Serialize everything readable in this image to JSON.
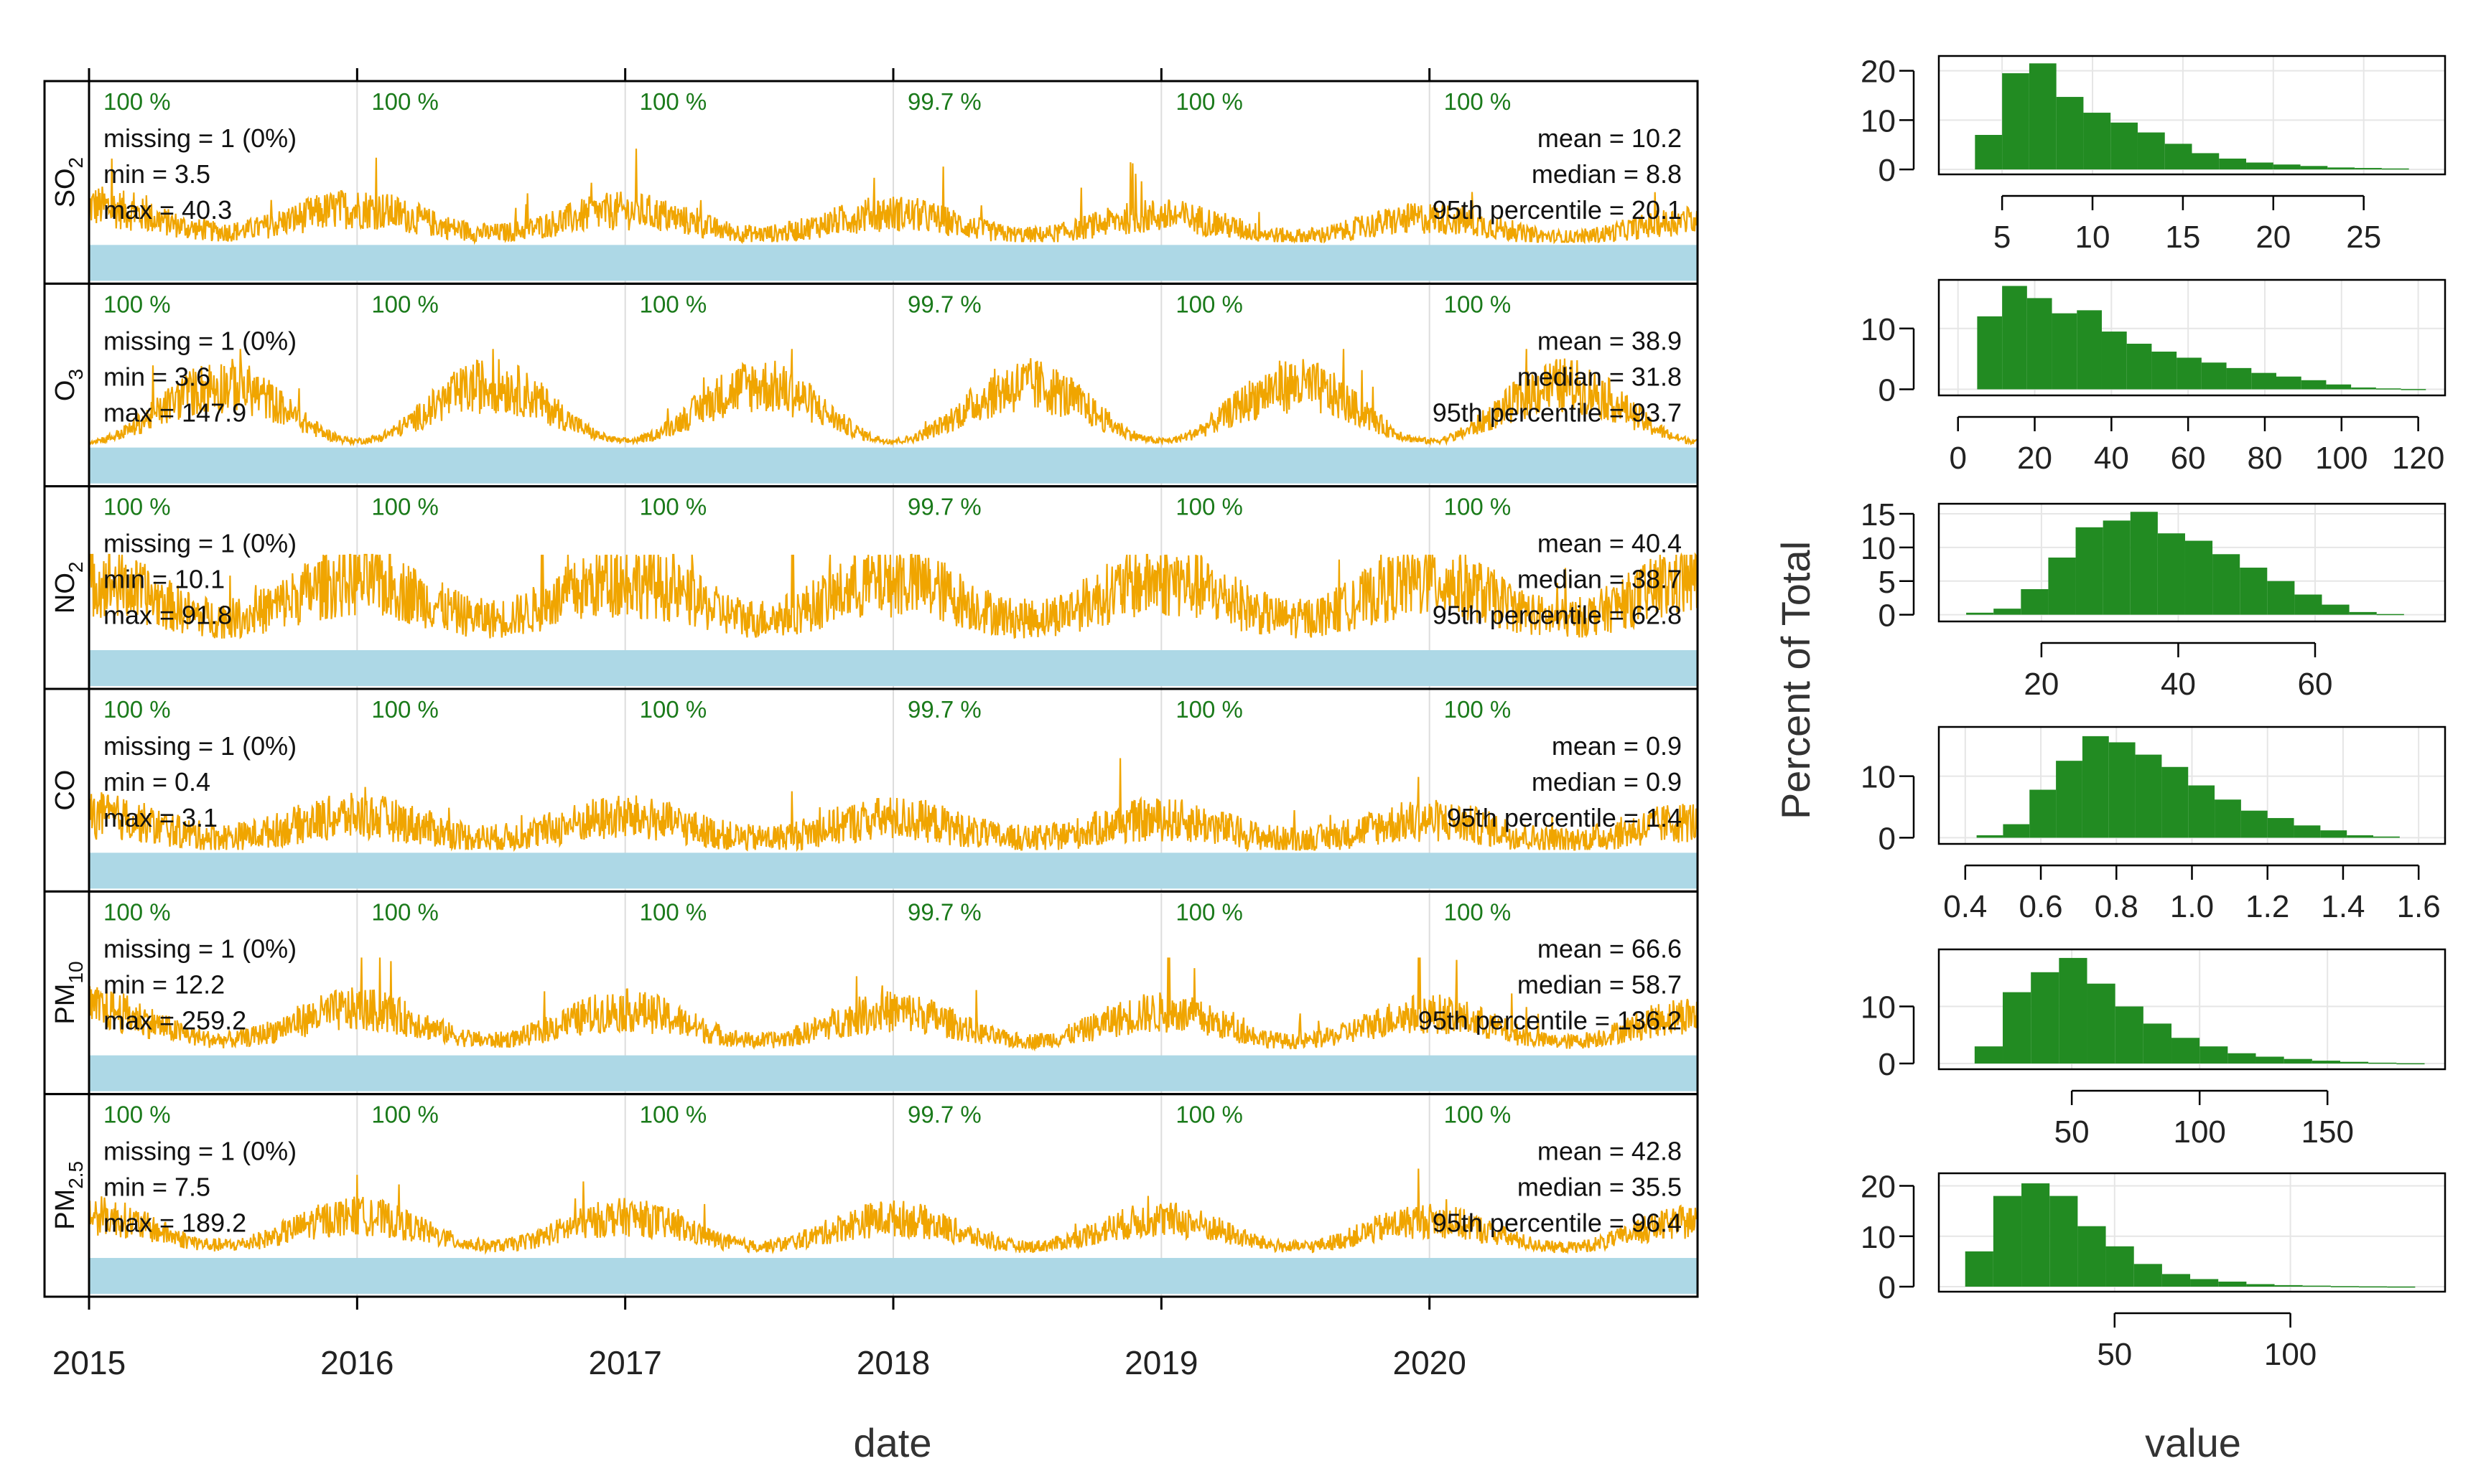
{
  "chart_data": [
    {
      "type": "line",
      "title": "",
      "xlabel": "date",
      "ylabel": "",
      "x_ticks": [
        "2015",
        "2016",
        "2017",
        "2018",
        "2019",
        "2020"
      ],
      "x_range": [
        2015,
        2021
      ],
      "colors": {
        "line": "#f0a500",
        "coverage_bar": "#add8e6",
        "pct_text": "#1a7a1a",
        "grid": "#dddddd"
      },
      "panels": [
        {
          "variable": "SO2",
          "label_main": "SO",
          "label_sub": "2",
          "year_capture": [
            "100 %",
            "100 %",
            "100 %",
            "99.7 %",
            "100 %",
            "100 %"
          ],
          "missing": "missing = 1 (0%)",
          "min": "min = 3.5",
          "max": "max = 40.3",
          "mean": "mean = 10.2",
          "median": "median = 8.8",
          "p95": "95th percentile = 20.1",
          "y_min": 3.5,
          "y_max": 40.3,
          "y_mean": 10.2,
          "seasonal_amplitude": 0.35,
          "trend": -0.5
        },
        {
          "variable": "O3",
          "label_main": "O",
          "label_sub": "3",
          "year_capture": [
            "100 %",
            "100 %",
            "100 %",
            "99.7 %",
            "100 %",
            "100 %"
          ],
          "missing": "missing = 1 (0%)",
          "min": "min = 3.6",
          "max": "max = 147.9",
          "mean": "mean = 38.9",
          "median": "median = 31.8",
          "p95": "95th percentile = 93.7",
          "y_min": 3.6,
          "y_max": 147.9,
          "y_mean": 38.9,
          "seasonal_amplitude": 0.8,
          "trend": 0.0
        },
        {
          "variable": "NO2",
          "label_main": "NO",
          "label_sub": "2",
          "year_capture": [
            "100 %",
            "100 %",
            "100 %",
            "99.7 %",
            "100 %",
            "100 %"
          ],
          "missing": "missing = 1 (0%)",
          "min": "min = 10.1",
          "max": "max = 91.8",
          "mean": "mean = 40.4",
          "median": "median = 38.7",
          "p95": "95th percentile = 62.8",
          "y_min": 10.1,
          "y_max": 91.8,
          "y_mean": 40.4,
          "seasonal_amplitude": 0.3,
          "trend": 0.0
        },
        {
          "variable": "CO",
          "label_main": "CO",
          "label_sub": "",
          "year_capture": [
            "100 %",
            "100 %",
            "100 %",
            "99.7 %",
            "100 %",
            "100 %"
          ],
          "missing": "missing = 1 (0%)",
          "min": "min = 0.4",
          "max": "max = 3.1",
          "mean": "mean = 0.9",
          "median": "median = 0.9",
          "p95": "95th percentile = 1.4",
          "y_min": 0.4,
          "y_max": 3.1,
          "y_mean": 0.9,
          "seasonal_amplitude": 0.25,
          "trend": -0.2
        },
        {
          "variable": "PM10",
          "label_main": "PM",
          "label_sub": "10",
          "year_capture": [
            "100 %",
            "100 %",
            "100 %",
            "99.7 %",
            "100 %",
            "100 %"
          ],
          "missing": "missing = 1 (0%)",
          "min": "min = 12.2",
          "max": "max = 259.2",
          "mean": "mean = 66.6",
          "median": "median = 58.7",
          "p95": "95th percentile = 136.2",
          "y_min": 12.2,
          "y_max": 259.2,
          "y_mean": 66.6,
          "seasonal_amplitude": 0.45,
          "trend": -0.2
        },
        {
          "variable": "PM2.5",
          "label_main": "PM",
          "label_sub": "2.5",
          "year_capture": [
            "100 %",
            "100 %",
            "100 %",
            "99.7 %",
            "100 %",
            "100 %"
          ],
          "missing": "missing = 1 (0%)",
          "min": "min = 7.5",
          "max": "max = 189.2",
          "mean": "mean = 42.8",
          "median": "median = 35.5",
          "p95": "95th percentile = 96.4",
          "y_min": 7.5,
          "y_max": 189.2,
          "y_mean": 42.8,
          "seasonal_amplitude": 0.5,
          "trend": -0.25
        }
      ]
    },
    {
      "type": "bar",
      "title": "",
      "xlabel": "value",
      "ylabel": "Percent of Total",
      "colors": {
        "bar": "#228b22",
        "grid": "#e6e6e6"
      },
      "histograms": [
        {
          "variable": "SO2",
          "x_range": [
            1.5,
            29.5
          ],
          "x_ticks": [
            5,
            10,
            15,
            20,
            25
          ],
          "y_range": [
            -1,
            23
          ],
          "y_ticks": [
            0,
            10,
            20
          ],
          "bin_start": 3.5,
          "bin_width": 1.5,
          "values": [
            7,
            19.5,
            21.5,
            14.7,
            11.5,
            9.5,
            7.5,
            5.2,
            3.3,
            2.2,
            1.4,
            1.0,
            0.7,
            0.4,
            0.3,
            0.2
          ]
        },
        {
          "variable": "O3",
          "x_range": [
            -5,
            127
          ],
          "x_ticks": [
            0,
            20,
            40,
            60,
            80,
            100,
            120
          ],
          "y_range": [
            -1,
            18
          ],
          "y_ticks": [
            0,
            10
          ],
          "bin_start": 5,
          "bin_width": 6.5,
          "values": [
            12,
            17,
            15,
            12.5,
            13,
            9.5,
            7.5,
            6.2,
            5.2,
            4.4,
            3.5,
            2.7,
            2.1,
            1.5,
            0.8,
            0.3,
            0.15,
            0.05
          ]
        },
        {
          "variable": "NO2",
          "x_range": [
            5,
            79
          ],
          "x_ticks": [
            20,
            40,
            60
          ],
          "y_range": [
            -1,
            16.5
          ],
          "y_ticks": [
            0,
            5,
            10,
            15
          ],
          "bin_start": 9,
          "bin_width": 4,
          "values": [
            0.3,
            0.9,
            3.8,
            8.5,
            13,
            14,
            15.3,
            12.1,
            11,
            9,
            7,
            5,
            3,
            1.5,
            0.4,
            0.1
          ]
        },
        {
          "variable": "CO",
          "x_range": [
            0.33,
            1.67
          ],
          "x_ticks": [
            0.4,
            0.6,
            0.8,
            1.0,
            1.2,
            1.4,
            1.6
          ],
          "y_range": [
            -1,
            18
          ],
          "y_ticks": [
            0,
            10
          ],
          "bin_start": 0.43,
          "bin_width": 0.07,
          "values": [
            0.4,
            2.2,
            7.8,
            12.5,
            16.5,
            15.5,
            13.5,
            11.5,
            8.5,
            6.2,
            4.4,
            3.2,
            2.0,
            1.2,
            0.4,
            0.2
          ]
        },
        {
          "variable": "PM10",
          "x_range": [
            -2,
            196
          ],
          "x_ticks": [
            50,
            100,
            150
          ],
          "y_range": [
            -1,
            20
          ],
          "y_ticks": [
            0,
            10
          ],
          "bin_start": 12,
          "bin_width": 11,
          "values": [
            3,
            12.5,
            16,
            18.5,
            14,
            10,
            7,
            4.5,
            3,
            1.8,
            1.2,
            0.8,
            0.5,
            0.3,
            0.15,
            0.05
          ]
        },
        {
          "variable": "PM2.5",
          "x_range": [
            0,
            144
          ],
          "x_ticks": [
            50,
            100
          ],
          "y_range": [
            -1,
            22.5
          ],
          "y_ticks": [
            0,
            10,
            20
          ],
          "bin_start": 7.5,
          "bin_width": 8,
          "values": [
            7,
            18,
            20.5,
            18,
            12,
            8,
            4.5,
            2.5,
            1.5,
            1.0,
            0.5,
            0.3,
            0.2,
            0.1,
            0.05,
            0.02
          ]
        }
      ]
    }
  ]
}
